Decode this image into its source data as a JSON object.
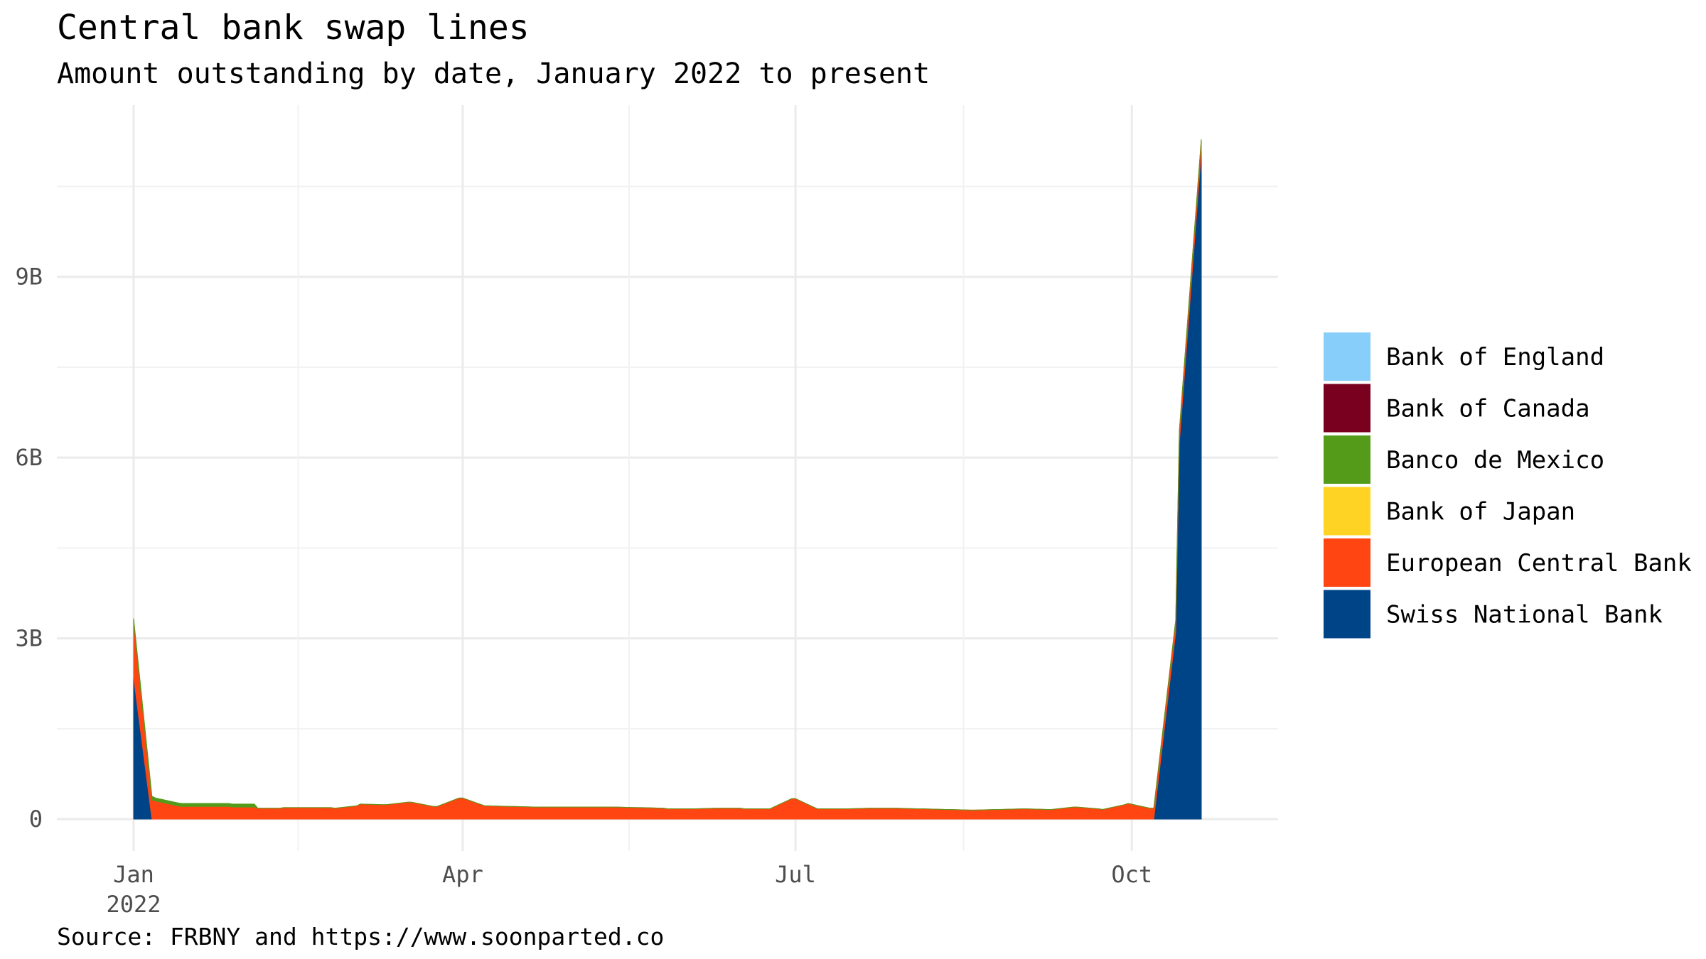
{
  "colors": {
    "Bank of England": "#87CEFA",
    "Bank of Canada": "#7A0020",
    "Banco de Mexico": "#549B1A",
    "Bank of Japan": "#FFD324",
    "European Central Bank": "#FF4512",
    "Swiss National Bank": "#004488",
    "grid_major": "#EBEBEB",
    "grid_minor": "#F2F2F2",
    "tick_text": "#4D4D4D"
  },
  "chart_data": {
    "type": "area",
    "stacked": true,
    "title": "Central bank swap lines",
    "subtitle": "Amount outstanding by date, January 2022 to present",
    "caption": "Source: FRBNY and https://www.soonparted.co",
    "xlabel": "",
    "ylabel": "",
    "x_ticks": [
      "Jan\n2022",
      "Apr",
      "Jul",
      "Oct"
    ],
    "x_tick_dates": [
      "2022-01-01",
      "2022-04-01",
      "2022-07-01",
      "2022-10-01"
    ],
    "y_ticks": [
      "0",
      "3B",
      "6B",
      "9B"
    ],
    "y_tick_values": [
      0,
      3000000000,
      6000000000,
      9000000000
    ],
    "xlim": [
      "2021-12-11",
      "2022-11-10"
    ],
    "ylim": [
      -530000000,
      11850000000
    ],
    "grid": true,
    "legend_position": "right",
    "legend": [
      "Bank of England",
      "Bank of Canada",
      "Banco de Mexico",
      "Bank of Japan",
      "European Central Bank",
      "Swiss National Bank"
    ],
    "x": [
      "2022-01-01",
      "2022-01-06",
      "2022-01-07",
      "2022-01-13",
      "2022-01-14",
      "2022-01-20",
      "2022-01-21",
      "2022-01-27",
      "2022-01-28",
      "2022-02-03",
      "2022-02-04",
      "2022-02-10",
      "2022-02-11",
      "2022-02-17",
      "2022-02-18",
      "2022-02-24",
      "2022-02-25",
      "2022-03-03",
      "2022-03-04",
      "2022-03-10",
      "2022-03-11",
      "2022-03-17",
      "2022-03-18",
      "2022-03-24",
      "2022-03-25",
      "2022-03-31",
      "2022-04-01",
      "2022-04-07",
      "2022-04-08",
      "2022-04-14",
      "2022-04-15",
      "2022-04-21",
      "2022-04-22",
      "2022-04-28",
      "2022-04-29",
      "2022-05-05",
      "2022-05-06",
      "2022-05-12",
      "2022-05-13",
      "2022-05-19",
      "2022-05-20",
      "2022-05-26",
      "2022-05-27",
      "2022-06-02",
      "2022-06-03",
      "2022-06-09",
      "2022-06-10",
      "2022-06-16",
      "2022-06-17",
      "2022-06-23",
      "2022-06-24",
      "2022-06-30",
      "2022-07-01",
      "2022-07-07",
      "2022-07-08",
      "2022-07-14",
      "2022-07-15",
      "2022-07-21",
      "2022-07-22",
      "2022-07-28",
      "2022-07-29",
      "2022-08-04",
      "2022-08-05",
      "2022-08-11",
      "2022-08-12",
      "2022-08-18",
      "2022-08-19",
      "2022-08-25",
      "2022-08-26",
      "2022-09-01",
      "2022-09-02",
      "2022-09-08",
      "2022-09-09",
      "2022-09-15",
      "2022-09-16",
      "2022-09-22",
      "2022-09-23",
      "2022-09-29",
      "2022-09-30",
      "2022-10-06",
      "2022-10-07",
      "2022-10-13",
      "2022-10-14",
      "2022-10-20"
    ],
    "series": [
      {
        "name": "Bank of England",
        "values": [
          0,
          0,
          0,
          0,
          0,
          0,
          0,
          0,
          0,
          0,
          0,
          0,
          0,
          0,
          0,
          0,
          0,
          0,
          0,
          0,
          0,
          0,
          0,
          0,
          0,
          0,
          0,
          0,
          0,
          0,
          0,
          0,
          0,
          0,
          0,
          0,
          0,
          0,
          0,
          0,
          0,
          0,
          0,
          0,
          0,
          0,
          0,
          0,
          0,
          0,
          0,
          0,
          0,
          0,
          0,
          0,
          0,
          0,
          0,
          0,
          0,
          0,
          0,
          0,
          0,
          0,
          0,
          0,
          0,
          0,
          0,
          0,
          0,
          0,
          0,
          0,
          0,
          0,
          0,
          0,
          0,
          0,
          0,
          0
        ]
      },
      {
        "name": "Bank of Canada",
        "values": [
          0,
          0,
          0,
          0,
          0,
          0,
          0,
          0,
          0,
          0,
          0,
          0,
          0,
          0,
          0,
          0,
          0,
          0,
          0,
          0,
          0,
          0,
          0,
          0,
          0,
          0,
          0,
          0,
          0,
          0,
          0,
          0,
          0,
          0,
          0,
          0,
          0,
          0,
          0,
          0,
          0,
          0,
          0,
          0,
          0,
          0,
          0,
          0,
          0,
          0,
          0,
          0,
          0,
          0,
          0,
          0,
          0,
          0,
          0,
          0,
          0,
          0,
          0,
          0,
          0,
          0,
          0,
          0,
          0,
          0,
          0,
          0,
          0,
          0,
          0,
          0,
          0,
          0,
          0,
          0,
          0,
          0,
          0,
          0
        ]
      },
      {
        "name": "Banco de Mexico",
        "values": [
          60000000,
          60000000,
          50000000,
          50000000,
          50000000,
          50000000,
          50000000,
          50000000,
          50000000,
          50000000,
          0,
          0,
          0,
          0,
          0,
          0,
          0,
          0,
          0,
          0,
          0,
          0,
          0,
          0,
          0,
          0,
          0,
          0,
          0,
          0,
          0,
          0,
          0,
          0,
          0,
          0,
          0,
          0,
          0,
          0,
          0,
          0,
          0,
          0,
          0,
          0,
          0,
          0,
          0,
          0,
          0,
          0,
          0,
          0,
          0,
          0,
          0,
          0,
          0,
          0,
          0,
          0,
          0,
          0,
          0,
          0,
          0,
          0,
          0,
          0,
          0,
          0,
          0,
          0,
          0,
          0,
          0,
          0,
          0,
          0,
          0,
          0,
          0,
          0
        ]
      },
      {
        "name": "Bank of Japan",
        "values": [
          0,
          0,
          0,
          0,
          0,
          0,
          0,
          0,
          0,
          0,
          0,
          0,
          0,
          0,
          0,
          0,
          0,
          0,
          0,
          0,
          0,
          0,
          0,
          0,
          0,
          0,
          0,
          0,
          0,
          0,
          0,
          0,
          0,
          0,
          0,
          0,
          0,
          0,
          0,
          0,
          0,
          0,
          0,
          0,
          0,
          0,
          0,
          0,
          0,
          0,
          0,
          0,
          0,
          0,
          0,
          0,
          0,
          0,
          0,
          0,
          0,
          0,
          0,
          0,
          0,
          0,
          0,
          0,
          0,
          0,
          0,
          0,
          0,
          0,
          0,
          0,
          0,
          0,
          0,
          0,
          0,
          0,
          0,
          0
        ]
      },
      {
        "name": "European Central Bank",
        "values": [
          920000000,
          320000000,
          300000000,
          220000000,
          210000000,
          210000000,
          210000000,
          210000000,
          200000000,
          200000000,
          180000000,
          180000000,
          190000000,
          190000000,
          190000000,
          190000000,
          180000000,
          220000000,
          250000000,
          240000000,
          240000000,
          280000000,
          280000000,
          210000000,
          210000000,
          350000000,
          350000000,
          220000000,
          220000000,
          210000000,
          210000000,
          200000000,
          200000000,
          200000000,
          200000000,
          200000000,
          200000000,
          200000000,
          200000000,
          190000000,
          190000000,
          180000000,
          170000000,
          170000000,
          170000000,
          180000000,
          180000000,
          180000000,
          170000000,
          170000000,
          170000000,
          340000000,
          340000000,
          170000000,
          170000000,
          170000000,
          170000000,
          180000000,
          180000000,
          180000000,
          180000000,
          170000000,
          170000000,
          160000000,
          160000000,
          150000000,
          150000000,
          160000000,
          160000000,
          170000000,
          170000000,
          160000000,
          160000000,
          200000000,
          200000000,
          170000000,
          160000000,
          240000000,
          260000000,
          180000000,
          180000000,
          200000000,
          200000000,
          200000000
        ]
      },
      {
        "name": "Swiss National Bank",
        "values": [
          2350000000,
          0,
          0,
          0,
          0,
          0,
          0,
          0,
          0,
          0,
          0,
          0,
          0,
          0,
          0,
          0,
          0,
          0,
          0,
          0,
          0,
          0,
          0,
          0,
          0,
          0,
          0,
          0,
          0,
          0,
          0,
          0,
          0,
          0,
          0,
          0,
          0,
          0,
          0,
          0,
          0,
          0,
          0,
          0,
          0,
          0,
          0,
          0,
          0,
          0,
          0,
          0,
          0,
          0,
          0,
          0,
          0,
          0,
          0,
          0,
          0,
          0,
          0,
          0,
          0,
          0,
          0,
          0,
          0,
          0,
          0,
          0,
          0,
          0,
          0,
          0,
          0,
          0,
          0,
          0,
          0,
          3100000000,
          6250000000,
          11080000000
        ]
      }
    ]
  }
}
